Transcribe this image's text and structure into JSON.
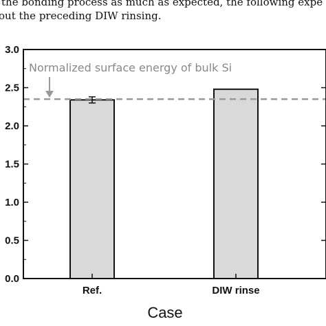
{
  "caption": {
    "line1": "the bonding process as much as expected, the following expe",
    "line2": "out the preceding DIW rinsing."
  },
  "chart_data": {
    "type": "bar",
    "categories": [
      "Ref.",
      "DIW rinse"
    ],
    "values": [
      2.34,
      2.48
    ],
    "errors": [
      0.04,
      0
    ],
    "xlabel": "Case",
    "ylabel": "",
    "ylim": [
      0.0,
      3.0
    ],
    "yticks": [
      "0.0",
      "0.5",
      "1.0",
      "1.5",
      "2.0",
      "2.5",
      "3.0"
    ],
    "reference_line": {
      "value": 2.35,
      "label": "Normalized surface energy of bulk Si",
      "style": "dashed"
    },
    "bar_color": "#d9d9d9",
    "reference_color": "#999999",
    "grid": false
  }
}
